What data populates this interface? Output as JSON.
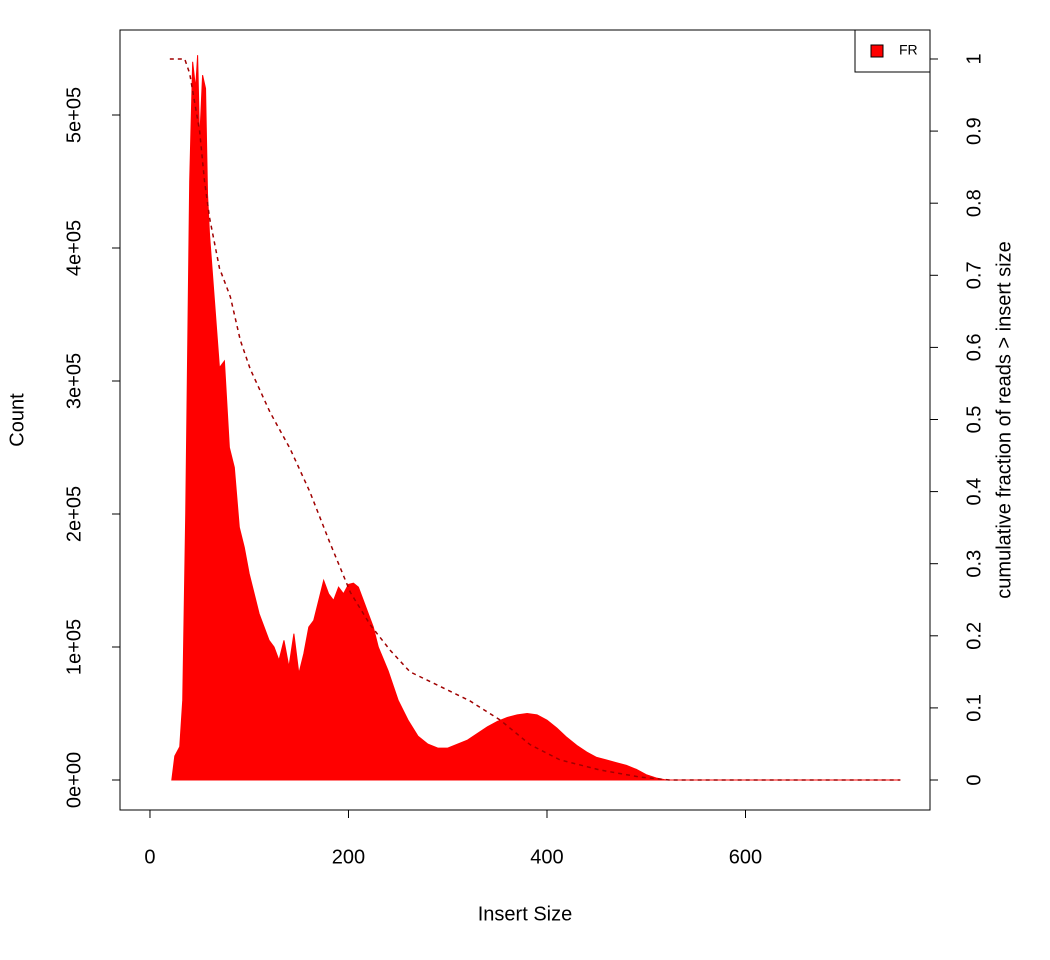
{
  "chart_data": {
    "type": "area",
    "x_label": "Insert Size",
    "y_label": "Count",
    "y2_label": "cumulative fraction of reads > insert size",
    "xlim": [
      -30.2,
      785.9
    ],
    "xticks": [
      0,
      200,
      400,
      600
    ],
    "ylim": [
      -22560,
      563900
    ],
    "yticks": [
      {
        "value": 0,
        "label": "0e+00"
      },
      {
        "value": 100000,
        "label": "1e+05"
      },
      {
        "value": 200000,
        "label": "2e+05"
      },
      {
        "value": 300000,
        "label": "3e+05"
      },
      {
        "value": 400000,
        "label": "4e+05"
      },
      {
        "value": 500000,
        "label": "5e+05"
      }
    ],
    "y2lim": [
      -0.0416,
      1.0402
    ],
    "y2ticks": [
      0,
      0.1,
      0.2,
      0.3,
      0.4,
      0.5,
      0.6,
      0.7,
      0.8,
      0.9,
      1
    ],
    "legend": "topright",
    "series": [
      {
        "name": "FR",
        "type": "area",
        "color": "#ff0000",
        "x": [
          22,
          25,
          30,
          33,
          36,
          40,
          43,
          46,
          48,
          50,
          53,
          56,
          58,
          60,
          65,
          70,
          75,
          80,
          85,
          90,
          95,
          100,
          105,
          110,
          115,
          120,
          125,
          130,
          135,
          140,
          145,
          150,
          155,
          160,
          165,
          170,
          175,
          180,
          185,
          190,
          195,
          200,
          205,
          210,
          215,
          220,
          225,
          230,
          240,
          250,
          260,
          270,
          280,
          290,
          300,
          310,
          320,
          330,
          340,
          350,
          360,
          370,
          380,
          390,
          400,
          410,
          420,
          430,
          440,
          450,
          460,
          470,
          480,
          490,
          500,
          510,
          520,
          756
        ],
        "values": [
          0,
          18000,
          25000,
          60000,
          200000,
          450000,
          540000,
          520000,
          545000,
          480000,
          530000,
          520000,
          440000,
          410000,
          360000,
          310000,
          315000,
          250000,
          235000,
          190000,
          175000,
          155000,
          140000,
          125000,
          115000,
          105000,
          100000,
          90000,
          105000,
          85000,
          110000,
          80000,
          95000,
          115000,
          120000,
          135000,
          150000,
          140000,
          135000,
          145000,
          140000,
          147000,
          148000,
          145000,
          135000,
          125000,
          115000,
          100000,
          82000,
          60000,
          45000,
          33000,
          27000,
          24000,
          24000,
          27000,
          30000,
          35000,
          40000,
          44000,
          47000,
          49000,
          50000,
          49000,
          45000,
          39000,
          32000,
          26000,
          21000,
          17000,
          15000,
          13000,
          11000,
          8000,
          4000,
          1500,
          0,
          0
        ]
      },
      {
        "type": "line",
        "axis": "y2",
        "color": "#a00000",
        "x": [
          20,
          35,
          40,
          45,
          50,
          55,
          60,
          70,
          81,
          91,
          101,
          121,
          141,
          161,
          181,
          202,
          222,
          242,
          262,
          292,
          322,
          353,
          383,
          413,
          453,
          494,
          524,
          756
        ],
        "values": [
          1,
          1,
          0.98,
          0.94,
          0.9,
          0.83,
          0.78,
          0.71,
          0.67,
          0.61,
          0.57,
          0.51,
          0.46,
          0.4,
          0.33,
          0.26,
          0.215,
          0.18,
          0.15,
          0.13,
          0.11,
          0.083,
          0.049,
          0.028,
          0.014,
          0.004,
          0,
          0
        ]
      }
    ]
  }
}
